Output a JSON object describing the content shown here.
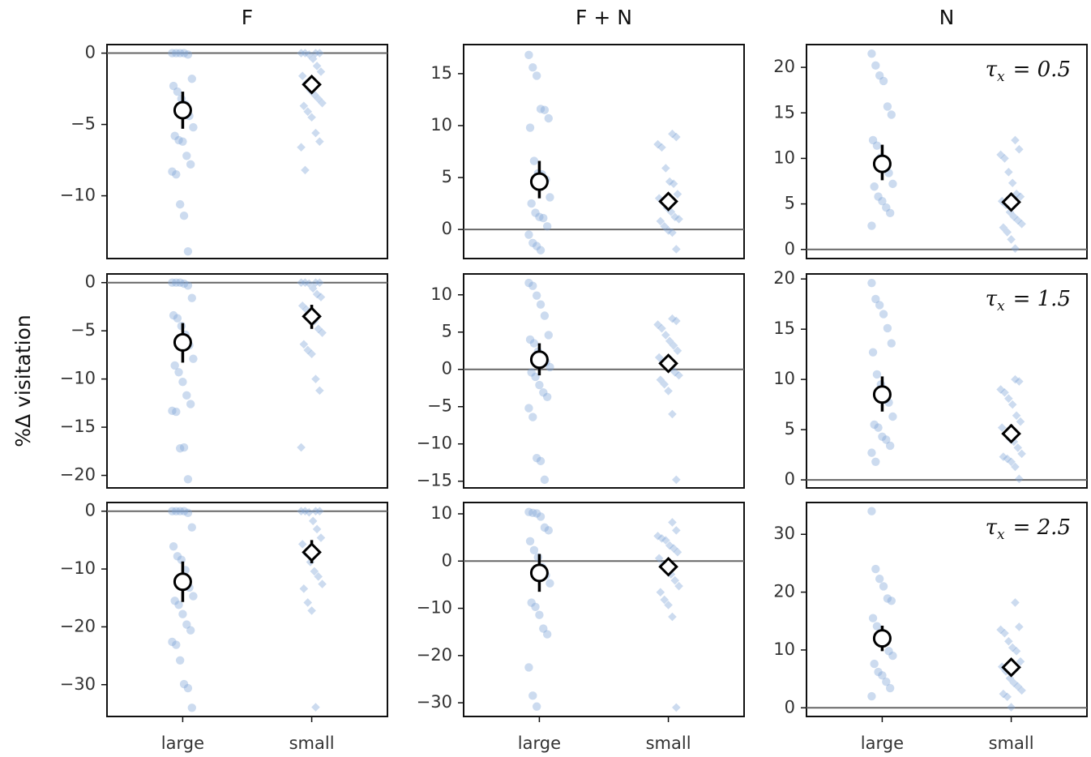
{
  "chart_data": [
    {
      "type": "strip",
      "title": "F",
      "ylim": [
        -14.4,
        0.6
      ],
      "yticks": [
        {
          "value": -10,
          "label": "−10"
        },
        {
          "value": -5,
          "label": "−5"
        },
        0
      ],
      "refline": 0,
      "groups": [
        {
          "marker": "circle",
          "points": [
            0,
            0,
            0,
            0,
            -0.1,
            -1.8,
            -2.3,
            -2.7,
            -3.2,
            -3.6,
            -4.4,
            -5.2,
            -5.8,
            -6.1,
            -6.2,
            -7.2,
            -7.8,
            -8.3,
            -8.5,
            -10.6,
            -11.4,
            -13.9
          ],
          "mean": -4,
          "ci": [
            -5.3,
            -2.7
          ]
        },
        {
          "marker": "diamond",
          "points": [
            0,
            0,
            0,
            0,
            -0.1,
            -0.4,
            -0.9,
            -1.3,
            -1.6,
            -2.1,
            -2.6,
            -2.9,
            -3.2,
            -3.5,
            -3.7,
            -4.1,
            -4.5,
            -5.6,
            -6.2,
            -6.6,
            -8.2
          ],
          "mean": -2.2,
          "ci": [
            -2.6,
            -1.8
          ]
        }
      ]
    },
    {
      "type": "strip",
      "title": "F + N",
      "ylim": [
        -2.8,
        17.8
      ],
      "yticks": [
        0,
        5,
        10,
        15
      ],
      "refline": 0,
      "groups": [
        {
          "marker": "circle",
          "points": [
            16.8,
            15.6,
            14.8,
            11.6,
            11.5,
            10.7,
            9.8,
            6.6,
            5.4,
            5.3,
            4.8,
            3.1,
            2.5,
            1.6,
            1.2,
            1.1,
            0.3,
            -0.5,
            -1.3,
            -1.6,
            -2
          ],
          "mean": 4.6,
          "ci": [
            3.0,
            6.6
          ]
        },
        {
          "marker": "diamond",
          "points": [
            9.2,
            8.9,
            8.2,
            7.9,
            5.9,
            4.6,
            4.4,
            3.4,
            3,
            2.6,
            2.1,
            1.7,
            1.2,
            1,
            0.8,
            0.3,
            -0.1,
            -0.3,
            -1.9
          ],
          "mean": 2.7,
          "ci": [
            2.2,
            3.2
          ]
        }
      ]
    },
    {
      "type": "strip",
      "title": "N",
      "ylim": [
        -1.0,
        22.5
      ],
      "yticks": [
        0,
        5,
        10,
        15,
        20
      ],
      "refline": 0,
      "annotation": {
        "symbol": "τ",
        "subscript": "x",
        "text": "= 0.5"
      },
      "groups": [
        {
          "marker": "circle",
          "points": [
            21.5,
            20.2,
            19.1,
            18.5,
            15.7,
            14.8,
            12,
            11.4,
            10.1,
            9.5,
            8.4,
            7.2,
            6.9,
            5.8,
            5.3,
            4.6,
            4,
            2.6
          ],
          "mean": 9.4,
          "ci": [
            7.6,
            11.5
          ]
        },
        {
          "marker": "diamond",
          "points": [
            12,
            11,
            10.4,
            10,
            8.5,
            7.3,
            6.1,
            5.8,
            5.3,
            4.9,
            4.1,
            3.6,
            3.2,
            2.8,
            2.4,
            1.9,
            1.1,
            0.1
          ],
          "mean": 5.2,
          "ci": [
            4.6,
            5.8
          ]
        }
      ]
    },
    {
      "type": "strip",
      "ylabel": "%Δ visitation",
      "ylim": [
        -21.3,
        0.9
      ],
      "yticks": [
        {
          "value": -20,
          "label": "−20"
        },
        {
          "value": -15,
          "label": "−15"
        },
        {
          "value": -10,
          "label": "−10"
        },
        {
          "value": -5,
          "label": "−5"
        },
        0
      ],
      "refline": 0,
      "groups": [
        {
          "marker": "circle",
          "points": [
            0,
            0,
            0,
            -0.1,
            -0.3,
            -1.6,
            -3.4,
            -3.7,
            -4.5,
            -5.4,
            -6.5,
            -7.9,
            -8.6,
            -9.3,
            -10.3,
            -11.7,
            -12.6,
            -13.3,
            -13.4,
            -17.2,
            -17.1,
            -20.4
          ],
          "mean": -6.2,
          "ci": [
            -8.3,
            -4.2
          ]
        },
        {
          "marker": "diamond",
          "points": [
            0,
            0,
            0,
            0,
            -0.1,
            -0.6,
            -1.2,
            -1.5,
            -2.4,
            -2.8,
            -3.4,
            -4,
            -4.8,
            -5.2,
            -6.4,
            -7,
            -7.4,
            -10,
            -11.2,
            -17.1
          ],
          "mean": -3.5,
          "ci": [
            -4.8,
            -2.3
          ]
        }
      ]
    },
    {
      "type": "strip",
      "ylim": [
        -15.9,
        12.8
      ],
      "yticks": [
        {
          "value": -15,
          "label": "−15"
        },
        {
          "value": -10,
          "label": "−10"
        },
        {
          "value": -5,
          "label": "−5"
        },
        0,
        5,
        10
      ],
      "refline": 0,
      "groups": [
        {
          "marker": "circle",
          "points": [
            11.6,
            11.2,
            9.9,
            8.7,
            7.2,
            4.6,
            4,
            3.5,
            2.4,
            1.4,
            1,
            0.3,
            -0.4,
            -1,
            -2.1,
            -3.1,
            -3.7,
            -5.2,
            -6.4,
            -11.9,
            -12.3,
            -14.8
          ],
          "mean": 1.3,
          "ci": [
            -0.8,
            3.5
          ]
        },
        {
          "marker": "diamond",
          "points": [
            6.8,
            6.5,
            6,
            5.5,
            4.6,
            3.8,
            3.2,
            2.5,
            1.6,
            1,
            0.5,
            0.2,
            -0.4,
            -0.8,
            -1.4,
            -2,
            -2.9,
            -6,
            -14.8
          ],
          "mean": 0.8,
          "ci": [
            -0.2,
            1.8
          ]
        }
      ]
    },
    {
      "type": "strip",
      "ylim": [
        -0.8,
        20.5
      ],
      "yticks": [
        0,
        5,
        10,
        15,
        20
      ],
      "refline": 0,
      "annotation": {
        "symbol": "τ",
        "subscript": "x",
        "text": "= 1.5"
      },
      "groups": [
        {
          "marker": "circle",
          "points": [
            19.6,
            18,
            17.4,
            16.5,
            15.1,
            13.6,
            12.7,
            10.5,
            9.5,
            8,
            7.7,
            6.3,
            5.5,
            5.2,
            4.3,
            4,
            3.4,
            2.7,
            1.8
          ],
          "mean": 8.5,
          "ci": [
            6.8,
            10.3
          ]
        },
        {
          "marker": "diamond",
          "points": [
            10,
            9.8,
            9,
            8.7,
            8.1,
            7.5,
            6.4,
            5.8,
            5.2,
            4.6,
            4.1,
            3.8,
            3.2,
            2.6,
            2.3,
            2.1,
            1.8,
            1.3,
            0.1
          ],
          "mean": 4.6,
          "ci": [
            3.8,
            5.5
          ]
        }
      ]
    },
    {
      "type": "strip",
      "categories": [
        "large",
        "small"
      ],
      "ylim": [
        -35.5,
        1.5
      ],
      "yticks": [
        {
          "value": -30,
          "label": "−30"
        },
        {
          "value": -20,
          "label": "−20"
        },
        {
          "value": -10,
          "label": "−10"
        },
        0
      ],
      "refline": 0,
      "groups": [
        {
          "marker": "circle",
          "points": [
            0,
            0,
            0,
            0,
            -0.3,
            -2.8,
            -6.1,
            -7.8,
            -8.4,
            -10.2,
            -13.2,
            -14.7,
            -15.5,
            -16.2,
            -17.8,
            -19.6,
            -20.6,
            -22.6,
            -23.1,
            -25.8,
            -29.9,
            -30.6,
            -34
          ],
          "mean": -12.2,
          "ci": [
            -15.7,
            -8.7
          ]
        },
        {
          "marker": "diamond",
          "points": [
            0,
            0,
            0,
            0,
            -0.2,
            -1.7,
            -3.1,
            -4.6,
            -5.7,
            -7.3,
            -8.8,
            -10.4,
            -11.3,
            -12.6,
            -13.4,
            -15.8,
            -17.2,
            -33.9
          ],
          "mean": -7.1,
          "ci": [
            -9,
            -5
          ]
        }
      ]
    },
    {
      "type": "strip",
      "categories": [
        "large",
        "small"
      ],
      "ylim": [
        -32.9,
        12.4
      ],
      "yticks": [
        {
          "value": -30,
          "label": "−30"
        },
        {
          "value": -20,
          "label": "−20"
        },
        {
          "value": -10,
          "label": "−10"
        },
        0,
        10
      ],
      "refline": 0,
      "groups": [
        {
          "marker": "circle",
          "points": [
            10.4,
            10.2,
            10.1,
            9.4,
            7.1,
            6.5,
            4.2,
            2.3,
            0.8,
            -1.3,
            -3,
            -4.7,
            -8.8,
            -9.7,
            -11.4,
            -14.3,
            -15.5,
            -22.5,
            -28.5,
            -30.8
          ],
          "mean": -2.5,
          "ci": [
            -6.5,
            1.5
          ]
        },
        {
          "marker": "diamond",
          "points": [
            8.2,
            6.5,
            5.3,
            4.8,
            4.4,
            3.3,
            2.7,
            1.9,
            0.6,
            -0.8,
            -2,
            -2.8,
            -4.1,
            -5.3,
            -6.6,
            -8.2,
            -9.3,
            -11.8,
            -31
          ],
          "mean": -1.2,
          "ci": [
            -2.5,
            0.2
          ]
        }
      ]
    },
    {
      "type": "strip",
      "categories": [
        "large",
        "small"
      ],
      "ylim": [
        -1.5,
        35.5
      ],
      "yticks": [
        0,
        10,
        20,
        30
      ],
      "refline": 0,
      "annotation": {
        "symbol": "τ",
        "subscript": "x",
        "text": "= 2.5"
      },
      "groups": [
        {
          "marker": "circle",
          "points": [
            34,
            24,
            22.3,
            21,
            18.9,
            18.5,
            15.5,
            14.1,
            12.4,
            11.3,
            9.8,
            9,
            7.6,
            6.2,
            5.6,
            4.5,
            3.4,
            2
          ],
          "mean": 12,
          "ci": [
            9.8,
            14.2
          ]
        },
        {
          "marker": "diamond",
          "points": [
            18.2,
            14,
            13.5,
            12.9,
            11.5,
            10.4,
            9.8,
            8,
            7.1,
            6.3,
            5.1,
            4.3,
            3.7,
            3,
            2.4,
            1.9,
            0.1
          ],
          "mean": 7,
          "ci": [
            6,
            8
          ]
        }
      ]
    }
  ]
}
